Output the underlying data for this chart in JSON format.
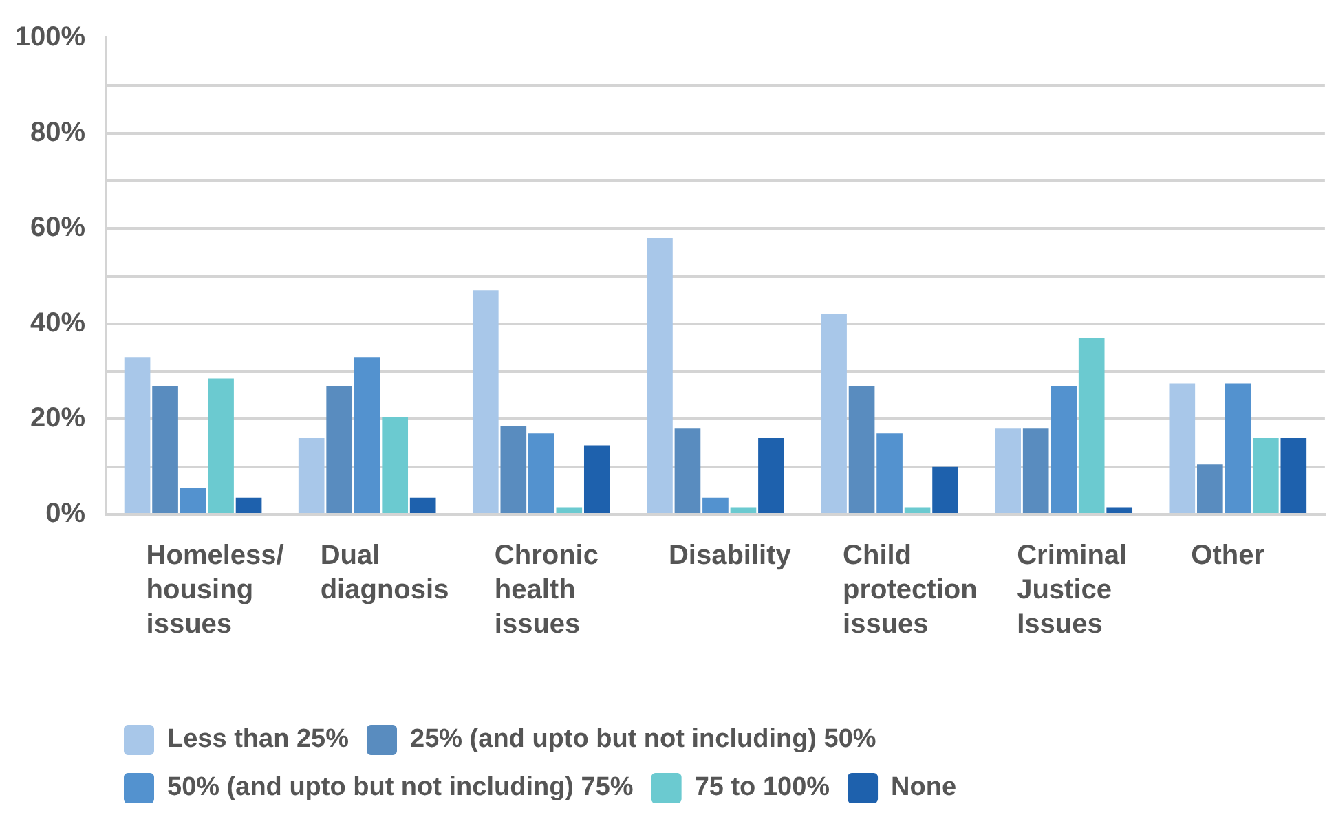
{
  "chart_data": {
    "type": "bar",
    "categories": [
      "Homeless/housing issues",
      "Dual diagnosis",
      "Chronic health issues",
      "Disability",
      "Child protection issues",
      "Criminal Justice Issues",
      "Other"
    ],
    "series": [
      {
        "name": "Less than 25%",
        "color": "#a8c7e9",
        "values": [
          33,
          16,
          47,
          58,
          42,
          18,
          27.5
        ]
      },
      {
        "name": "25% (and upto but not including) 50%",
        "color": "#598cbf",
        "values": [
          27,
          27,
          18.5,
          18,
          27,
          18,
          10.5
        ]
      },
      {
        "name": "50% (and upto but not including) 75%",
        "color": "#5392cf",
        "values": [
          5.5,
          33,
          17,
          3.5,
          17,
          27,
          27.5
        ]
      },
      {
        "name": "75 to 100%",
        "color": "#6bcad0",
        "values": [
          28.5,
          20.5,
          1.5,
          1.5,
          1.5,
          37,
          16
        ]
      },
      {
        "name": "None",
        "color": "#1e61ad",
        "values": [
          3.5,
          3.5,
          14.5,
          16,
          10,
          1.5,
          16
        ]
      }
    ],
    "ylim": [
      0,
      100
    ],
    "yticks": [
      {
        "value": 0,
        "label": "0%"
      },
      {
        "value": 10,
        "label": null
      },
      {
        "value": 20,
        "label": "20%"
      },
      {
        "value": 30,
        "label": null
      },
      {
        "value": 40,
        "label": "40%"
      },
      {
        "value": 50,
        "label": null
      },
      {
        "value": 60,
        "label": "60%"
      },
      {
        "value": 70,
        "label": null
      },
      {
        "value": 80,
        "label": "80%"
      },
      {
        "value": 90,
        "label": null
      },
      {
        "value": 100,
        "label": "100%"
      }
    ],
    "grid": "y",
    "legend": "bottom left"
  }
}
